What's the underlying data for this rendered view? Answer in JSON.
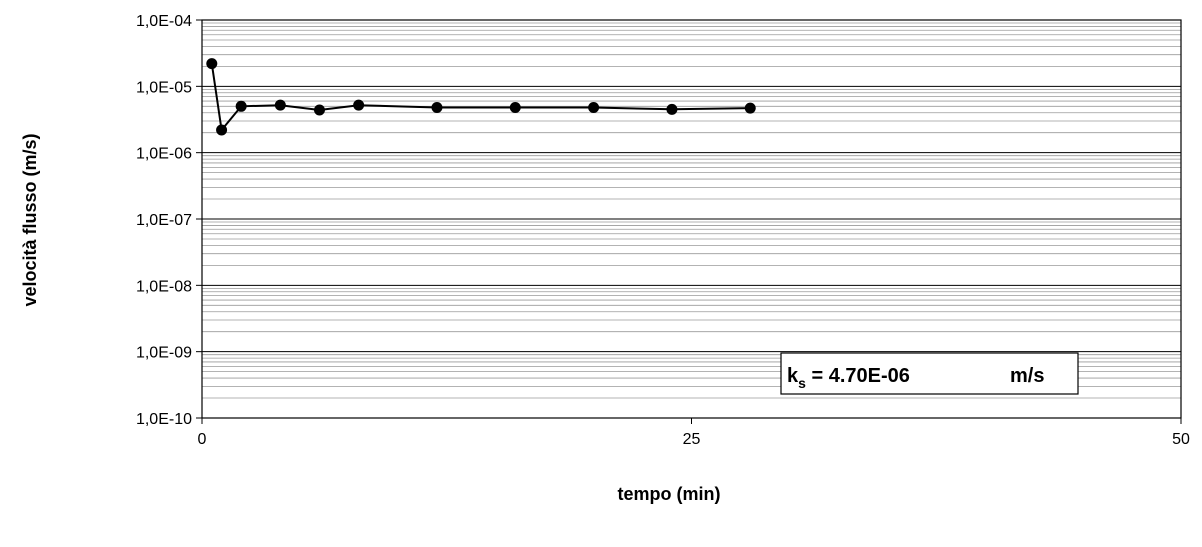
{
  "chart_data": {
    "type": "scatter",
    "title": "",
    "xlabel": "tempo (min)",
    "ylabel": "velocità flusso (m/s)",
    "xlim": [
      0,
      50
    ],
    "ylim": [
      1e-10,
      0.0001
    ],
    "y_scale": "log",
    "x_ticks": [
      0,
      25,
      50
    ],
    "x_tick_labels": [
      "0",
      "25",
      "50"
    ],
    "y_ticks": [
      0.0001,
      1e-05,
      1e-06,
      1e-07,
      1e-08,
      1e-09,
      1e-10
    ],
    "y_tick_labels": [
      "1,0E-04",
      "1,0E-05",
      "1,0E-06",
      "1,0E-07",
      "1,0E-08",
      "1,0E-09",
      "1,0E-10"
    ],
    "grid": true,
    "legend": "none",
    "series": [
      {
        "line_color": "#000000",
        "marker": "circle",
        "points": [
          {
            "x": 0.5,
            "y": 2.2e-05
          },
          {
            "x": 1.0,
            "y": 2.2e-06
          },
          {
            "x": 2.0,
            "y": 5e-06
          },
          {
            "x": 4.0,
            "y": 5.2e-06
          },
          {
            "x": 6.0,
            "y": 4.4e-06
          },
          {
            "x": 8.0,
            "y": 5.2e-06
          },
          {
            "x": 12.0,
            "y": 4.8e-06
          },
          {
            "x": 16.0,
            "y": 4.8e-06
          },
          {
            "x": 20.0,
            "y": 4.8e-06
          },
          {
            "x": 24.0,
            "y": 4.5e-06
          },
          {
            "x": 28.0,
            "y": 4.7e-06
          }
        ]
      }
    ],
    "annotation": {
      "k_base": "k",
      "k_sub": "s",
      "value_text": " = 4.70E-06",
      "unit_text": "m/s"
    }
  }
}
